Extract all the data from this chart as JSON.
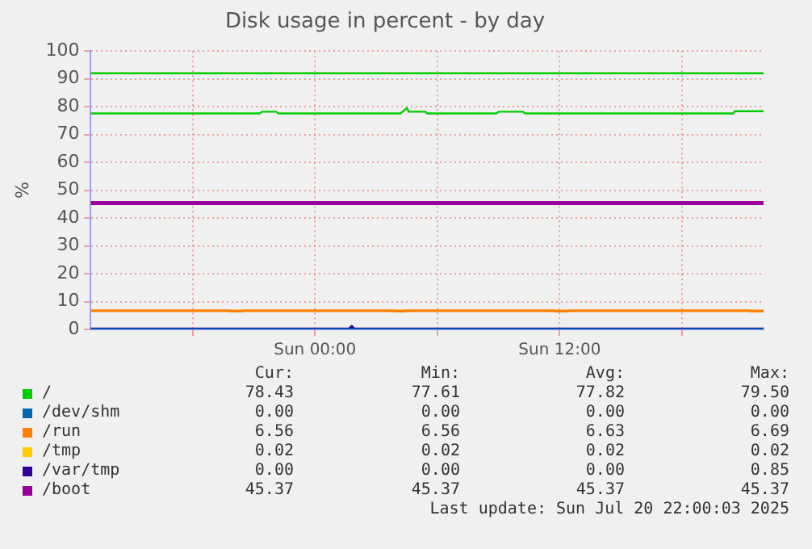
{
  "chart_data": {
    "type": "line",
    "title": "Disk usage in percent - by day",
    "ylabel": "%",
    "xlim": [
      "2025-07-19T13:00",
      "2025-07-20T22:00"
    ],
    "xticks": [
      {
        "value": "2025-07-19T18:00",
        "label": null
      },
      {
        "value": "2025-07-20T00:00",
        "label": "Sun 00:00"
      },
      {
        "value": "2025-07-20T06:00",
        "label": null
      },
      {
        "value": "2025-07-20T12:00",
        "label": "Sun 12:00"
      },
      {
        "value": "2025-07-20T18:00",
        "label": null
      }
    ],
    "ylim": [
      0,
      100
    ],
    "yticks": [
      0,
      10,
      20,
      30,
      40,
      50,
      60,
      70,
      80,
      90,
      100
    ],
    "grid": true,
    "legend": "bottom",
    "marker": "none",
    "line_style": "solid",
    "ref_lines": [
      {
        "axis": "y",
        "value": 92,
        "color": "#00cc00"
      }
    ],
    "series": [
      {
        "name": "/",
        "color": "#00cc00",
        "x": [
          "2025-07-19T13:00",
          "2025-07-19T21:18",
          "2025-07-19T21:24",
          "2025-07-19T22:06",
          "2025-07-19T22:12",
          "2025-07-20T04:12",
          "2025-07-20T04:30",
          "2025-07-20T04:36",
          "2025-07-20T05:24",
          "2025-07-20T05:30",
          "2025-07-20T08:54",
          "2025-07-20T09:00",
          "2025-07-20T10:12",
          "2025-07-20T10:18",
          "2025-07-20T20:30",
          "2025-07-20T20:36",
          "2025-07-20T22:00"
        ],
        "values": [
          77.6,
          77.6,
          78.2,
          78.2,
          77.6,
          77.6,
          79.5,
          78.2,
          78.2,
          77.6,
          77.6,
          78.2,
          78.2,
          77.6,
          77.6,
          78.4,
          78.4
        ]
      },
      {
        "name": "/dev/shm",
        "color": "#0066b3",
        "x": [
          "2025-07-19T13:00",
          "2025-07-20T22:00"
        ],
        "values": [
          0,
          0
        ]
      },
      {
        "name": "/run",
        "color": "#ff8000",
        "x": [
          "2025-07-19T13:00",
          "2025-07-19T19:48",
          "2025-07-19T19:54",
          "2025-07-19T20:24",
          "2025-07-19T20:30",
          "2025-07-20T03:48",
          "2025-07-20T03:54",
          "2025-07-20T04:24",
          "2025-07-20T04:30",
          "2025-07-20T11:42",
          "2025-07-20T11:48",
          "2025-07-20T12:24",
          "2025-07-20T12:30",
          "2025-07-20T21:18",
          "2025-07-20T21:24",
          "2025-07-20T22:00"
        ],
        "values": [
          6.7,
          6.7,
          6.6,
          6.6,
          6.7,
          6.7,
          6.6,
          6.6,
          6.7,
          6.7,
          6.6,
          6.6,
          6.7,
          6.7,
          6.6,
          6.6
        ]
      },
      {
        "name": "/tmp",
        "color": "#ffcc00"
      },
      {
        "name": "/var/tmp",
        "color": "#330099",
        "x": [
          "2025-07-19T13:00",
          "2025-07-20T01:42",
          "2025-07-20T01:48",
          "2025-07-20T01:54",
          "2025-07-20T22:00"
        ],
        "values": [
          0,
          0,
          0.9,
          0,
          0
        ]
      },
      {
        "name": "/boot",
        "color": "#990099",
        "x": [
          "2025-07-19T13:00",
          "2025-07-20T22:00"
        ],
        "values": [
          45.4,
          45.4
        ]
      }
    ],
    "annotations": [
      "Cur:",
      "Min:",
      "Avg:",
      "Max:",
      "78.43",
      "77.61",
      "77.82",
      "79.50",
      "0.00",
      "0.00",
      "0.00",
      "0.00",
      "6.56",
      "6.56",
      "6.63",
      "6.69",
      "0.02",
      "0.02",
      "0.02",
      "0.02",
      "0.00",
      "0.00",
      "0.00",
      "0.85",
      "45.37",
      "45.37",
      "45.37",
      "45.37",
      "Last update: Sun Jul 20 22:00:03 2025"
    ]
  }
}
